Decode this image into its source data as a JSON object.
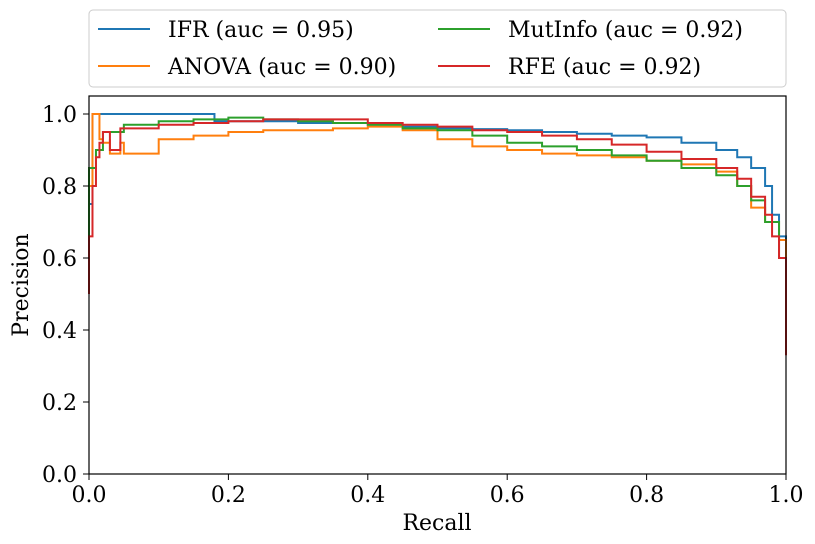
{
  "chart_data": {
    "type": "line",
    "title": "",
    "xlabel": "Recall",
    "ylabel": "Precision",
    "xlim": [
      0.0,
      1.0
    ],
    "ylim": [
      0.0,
      1.05
    ],
    "grid": false,
    "legend_placement": "top (above plot), 2 columns",
    "xticks": [
      "0.0",
      "0.2",
      "0.4",
      "0.6",
      "0.8",
      "1.0"
    ],
    "xtick_values": [
      0.0,
      0.2,
      0.4,
      0.6,
      0.8,
      1.0
    ],
    "yticks": [
      "0.0",
      "0.2",
      "0.4",
      "0.6",
      "0.8",
      "1.0"
    ],
    "ytick_values": [
      0.0,
      0.2,
      0.4,
      0.6,
      0.8,
      1.0
    ],
    "series": [
      {
        "name": "IFR (auc = 0.95)",
        "color": "#1f77b4",
        "x": [
          0.0,
          0.0,
          0.005,
          0.18,
          0.18,
          0.25,
          0.3,
          0.35,
          0.4,
          0.45,
          0.5,
          0.55,
          0.6,
          0.65,
          0.7,
          0.75,
          0.8,
          0.85,
          0.9,
          0.93,
          0.95,
          0.97,
          0.98,
          0.99,
          1.0,
          1.0
        ],
        "y": [
          0.5,
          0.75,
          1.0,
          1.0,
          0.98,
          0.98,
          0.975,
          0.975,
          0.97,
          0.965,
          0.96,
          0.958,
          0.955,
          0.95,
          0.945,
          0.94,
          0.935,
          0.92,
          0.9,
          0.88,
          0.85,
          0.8,
          0.72,
          0.66,
          0.63,
          0.44
        ]
      },
      {
        "name": "ANOVA (auc = 0.90)",
        "color": "#ff7f0e",
        "x": [
          0.0,
          0.0,
          0.005,
          0.015,
          0.015,
          0.02,
          0.03,
          0.03,
          0.045,
          0.05,
          0.05,
          0.1,
          0.15,
          0.2,
          0.25,
          0.3,
          0.35,
          0.4,
          0.45,
          0.5,
          0.55,
          0.6,
          0.65,
          0.7,
          0.75,
          0.8,
          0.85,
          0.9,
          0.93,
          0.95,
          0.97,
          0.99,
          1.0
        ],
        "y": [
          0.5,
          0.8,
          1.0,
          1.0,
          0.93,
          0.92,
          0.93,
          0.89,
          0.92,
          0.92,
          0.89,
          0.93,
          0.94,
          0.95,
          0.955,
          0.955,
          0.96,
          0.965,
          0.955,
          0.93,
          0.91,
          0.9,
          0.89,
          0.885,
          0.88,
          0.87,
          0.86,
          0.84,
          0.8,
          0.74,
          0.7,
          0.65,
          0.5
        ]
      },
      {
        "name": "MutInfo (auc = 0.92)",
        "color": "#2ca02c",
        "x": [
          0.0,
          0.0,
          0.01,
          0.02,
          0.05,
          0.1,
          0.15,
          0.2,
          0.25,
          0.3,
          0.35,
          0.4,
          0.45,
          0.5,
          0.55,
          0.6,
          0.65,
          0.7,
          0.75,
          0.8,
          0.85,
          0.9,
          0.93,
          0.95,
          0.97,
          0.99,
          1.0
        ],
        "y": [
          0.5,
          0.85,
          0.9,
          0.95,
          0.97,
          0.98,
          0.985,
          0.99,
          0.985,
          0.98,
          0.975,
          0.97,
          0.96,
          0.955,
          0.94,
          0.92,
          0.91,
          0.9,
          0.885,
          0.87,
          0.85,
          0.83,
          0.8,
          0.76,
          0.7,
          0.6,
          0.44
        ]
      },
      {
        "name": "RFE (auc = 0.92)",
        "color": "#d62728",
        "x": [
          0.0,
          0.0,
          0.005,
          0.01,
          0.015,
          0.02,
          0.03,
          0.045,
          0.045,
          0.06,
          0.1,
          0.15,
          0.2,
          0.25,
          0.3,
          0.35,
          0.4,
          0.45,
          0.5,
          0.55,
          0.6,
          0.65,
          0.7,
          0.75,
          0.8,
          0.85,
          0.9,
          0.93,
          0.95,
          0.97,
          0.98,
          0.99,
          1.0,
          1.0
        ],
        "y": [
          0.5,
          0.66,
          0.8,
          0.88,
          0.92,
          0.95,
          0.9,
          0.93,
          0.96,
          0.96,
          0.97,
          0.975,
          0.98,
          0.985,
          0.985,
          0.985,
          0.975,
          0.97,
          0.965,
          0.955,
          0.95,
          0.94,
          0.93,
          0.915,
          0.895,
          0.875,
          0.85,
          0.82,
          0.77,
          0.72,
          0.66,
          0.6,
          0.4,
          0.33
        ]
      }
    ]
  }
}
